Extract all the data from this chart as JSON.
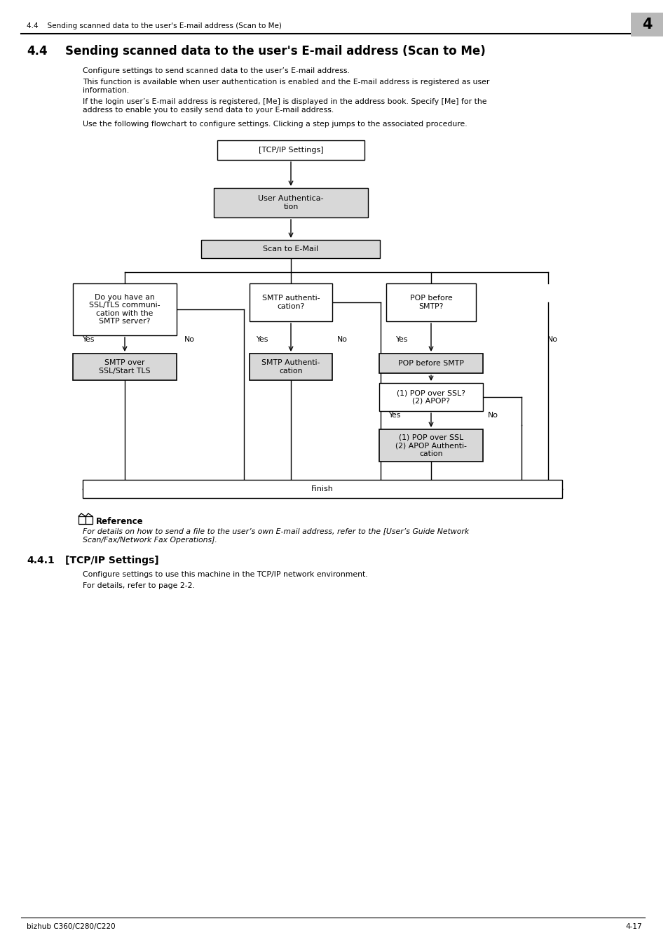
{
  "page_bg": "#ffffff",
  "header_text": "4.4    Sending scanned data to the user's E-mail address (Scan to Me)",
  "header_num": "4",
  "title_num": "4.4",
  "title_text": "Sending scanned data to the user's E-mail address (Scan to Me)",
  "para1": "Configure settings to send scanned data to the user’s E-mail address.",
  "para2_l1": "This function is available when user authentication is enabled and the E-mail address is registered as user",
  "para2_l2": "information.",
  "para3_l1": "If the login user’s E-mail address is registered, [Me] is displayed in the address book. Specify [Me] for the",
  "para3_l2": "address to enable you to easily send data to your E-mail address.",
  "para4": "Use the following flowchart to configure settings. Clicking a step jumps to the associated procedure.",
  "node_tcp": "[TCP/IP Settings]",
  "node_ua": "User Authentica-\ntion",
  "node_scan": "Scan to E-Mail",
  "node_q1": "Do you have an\nSSL/TLS communi-\ncation with the\nSMTP server?",
  "node_q2": "SMTP authenti-\ncation?",
  "node_q3": "POP before\nSMTP?",
  "node_a1": "SMTP over\nSSL/Start TLS",
  "node_a2": "SMTP Authenti-\ncation",
  "node_a3": "POP before SMTP",
  "node_q4": "(1) POP over SSL?\n(2) APOP?",
  "node_a4": "(1) POP over SSL\n(2) APOP Authenti-\ncation",
  "node_finish": "Finish",
  "ref_label": "Reference",
  "ref_text_l1": "For details on how to send a file to the user’s own E-mail address, refer to the [User’s Guide Network",
  "ref_text_l2": "Scan/Fax/Network Fax Operations].",
  "sec_num": "4.4.1",
  "sec_title": "[TCP/IP Settings]",
  "sec_p1": "Configure settings to use this machine in the TCP/IP network environment.",
  "sec_p2": "For details, refer to page 2-2.",
  "footer_left": "bizhub C360/C280/C220",
  "footer_right": "4-17"
}
